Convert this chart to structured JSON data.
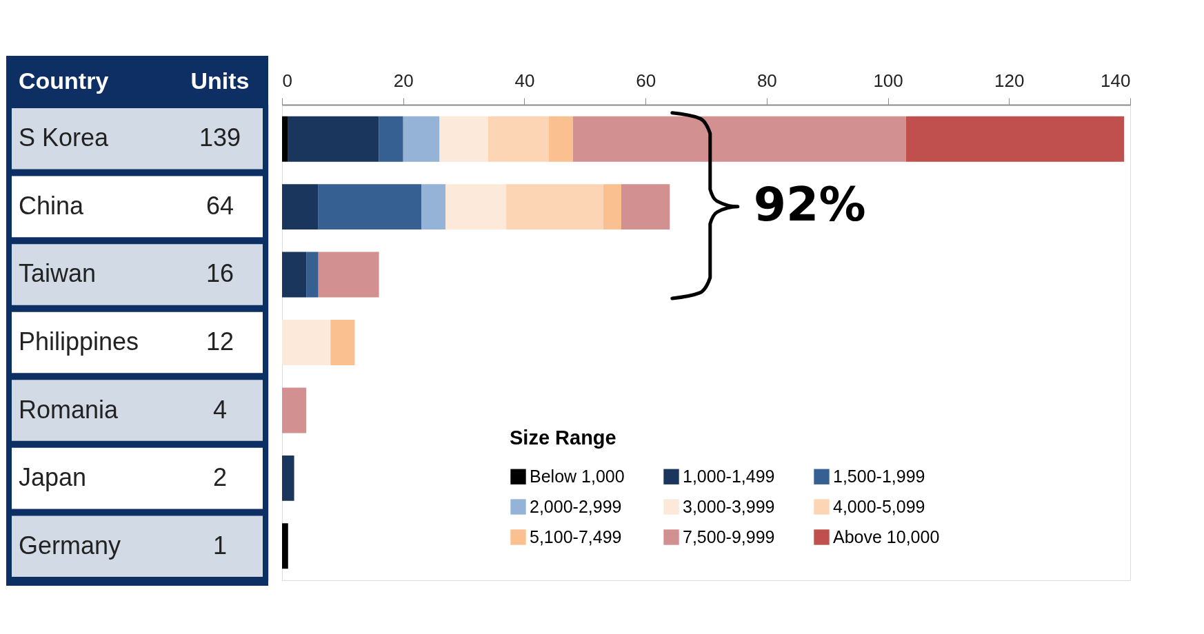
{
  "chart_data": {
    "type": "bar",
    "orientation": "horizontal",
    "stacked": true,
    "ylabel": "Country",
    "categories": [
      "S Korea",
      "China",
      "Taiwan",
      "Philippines",
      "Romania",
      "Japan",
      "Germany"
    ],
    "totals": [
      "139",
      "64",
      "16",
      "12",
      "4",
      "2",
      "1"
    ],
    "legend_title": "Size Range",
    "series": [
      {
        "name": "Below 1,000",
        "color": "#000000",
        "values": [
          1,
          null,
          null,
          null,
          null,
          null,
          1
        ]
      },
      {
        "name": "1,000-1,499",
        "color": "#1b365d",
        "values": [
          15,
          6,
          4,
          null,
          null,
          2,
          null
        ]
      },
      {
        "name": "1,500-1,999",
        "color": "#376092",
        "values": [
          4,
          17,
          2,
          null,
          null,
          null,
          null
        ]
      },
      {
        "name": "2,000-2,999",
        "color": "#95b3d7",
        "values": [
          6,
          4,
          null,
          null,
          null,
          null,
          null
        ]
      },
      {
        "name": "3,000-3,999",
        "color": "#fde9d9",
        "values": [
          8,
          10,
          null,
          8,
          null,
          null,
          null
        ]
      },
      {
        "name": "4,000-5,099",
        "color": "#fcd5b5",
        "values": [
          10,
          16,
          null,
          null,
          null,
          null,
          null
        ]
      },
      {
        "name": "5,100-7,499",
        "color": "#fac090",
        "values": [
          4,
          3,
          null,
          4,
          null,
          null,
          null
        ]
      },
      {
        "name": "7,500-9,999",
        "color": "#d39090",
        "values": [
          55,
          8,
          10,
          null,
          4,
          null,
          null
        ]
      },
      {
        "name": "Above 10,000",
        "color": "#c0504d",
        "values": [
          36,
          null,
          null,
          null,
          null,
          null,
          null
        ]
      }
    ],
    "xlim": [
      0,
      140
    ],
    "xticks": [
      0,
      20,
      40,
      60,
      80,
      100,
      120,
      140
    ],
    "grid": false,
    "legend": "bottom right",
    "annotations": [
      "Units",
      "92%"
    ]
  }
}
